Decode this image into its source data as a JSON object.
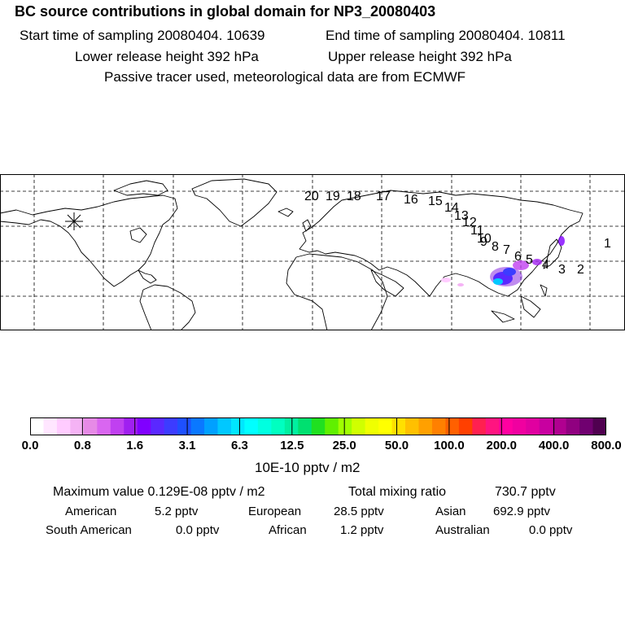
{
  "header": {
    "title": "BC  source contributions in global domain for NP3_20080403",
    "start_time": "Start time of sampling 20080404. 10639",
    "end_time": "End time of sampling 20080404. 10811",
    "lower_height": "Lower release height  392 hPa",
    "upper_height": "Upper release height  392 hPa",
    "tracer_note": "Passive tracer used, meteorological data are from ECMWF"
  },
  "map": {
    "projection": "cylindrical, global domain, dashed lat/lon grid",
    "receptor_marker": "asterisk-icon",
    "trajectory_labels": [
      "1",
      "2",
      "3",
      "4",
      "5",
      "6",
      "7",
      "8",
      "9",
      "10",
      "11",
      "12",
      "13",
      "14",
      "15",
      "16",
      "17",
      "18",
      "19",
      "20"
    ],
    "hotspot_color": "#8a2be2"
  },
  "colorbar": {
    "colors": [
      "#ffffff",
      "#ffe6ff",
      "#ffccff",
      "#f5b3f5",
      "#e68ae6",
      "#d966f0",
      "#c040f0",
      "#a020f0",
      "#8000ff",
      "#5a28ff",
      "#3c3cff",
      "#1e50ff",
      "#0a78ff",
      "#00a0ff",
      "#00c8ff",
      "#00e6ff",
      "#00ffff",
      "#00ffe0",
      "#00ffc0",
      "#00f0a0",
      "#00e070",
      "#20e020",
      "#60f000",
      "#a0ff00",
      "#d0ff00",
      "#f0ff00",
      "#ffff00",
      "#ffe000",
      "#ffc000",
      "#ffa000",
      "#ff8000",
      "#ff6000",
      "#ff4000",
      "#ff2050",
      "#ff1480",
      "#ff00a0",
      "#f000a0",
      "#e000a0",
      "#c800a0",
      "#b00090",
      "#900080",
      "#700070",
      "#500050"
    ],
    "tick_labels": [
      "0.0",
      "0.8",
      "1.6",
      "3.1",
      "6.3",
      "12.5",
      "25.0",
      "50.0",
      "100.0",
      "200.0",
      "400.0",
      "800.0"
    ],
    "units": "10E-10 pptv / m2"
  },
  "stats": {
    "max_value": "Maximum value  0.129E-08 pptv / m2",
    "total_label": "Total mixing ratio",
    "total_value": "730.7 pptv",
    "regions": [
      {
        "name": "American",
        "value": "5.2 pptv"
      },
      {
        "name": "European",
        "value": "28.5 pptv"
      },
      {
        "name": "Asian",
        "value": "692.9 pptv"
      },
      {
        "name": "South American",
        "value": "0.0 pptv"
      },
      {
        "name": "African",
        "value": "1.2 pptv"
      },
      {
        "name": "Australian",
        "value": "0.0 pptv"
      }
    ]
  }
}
